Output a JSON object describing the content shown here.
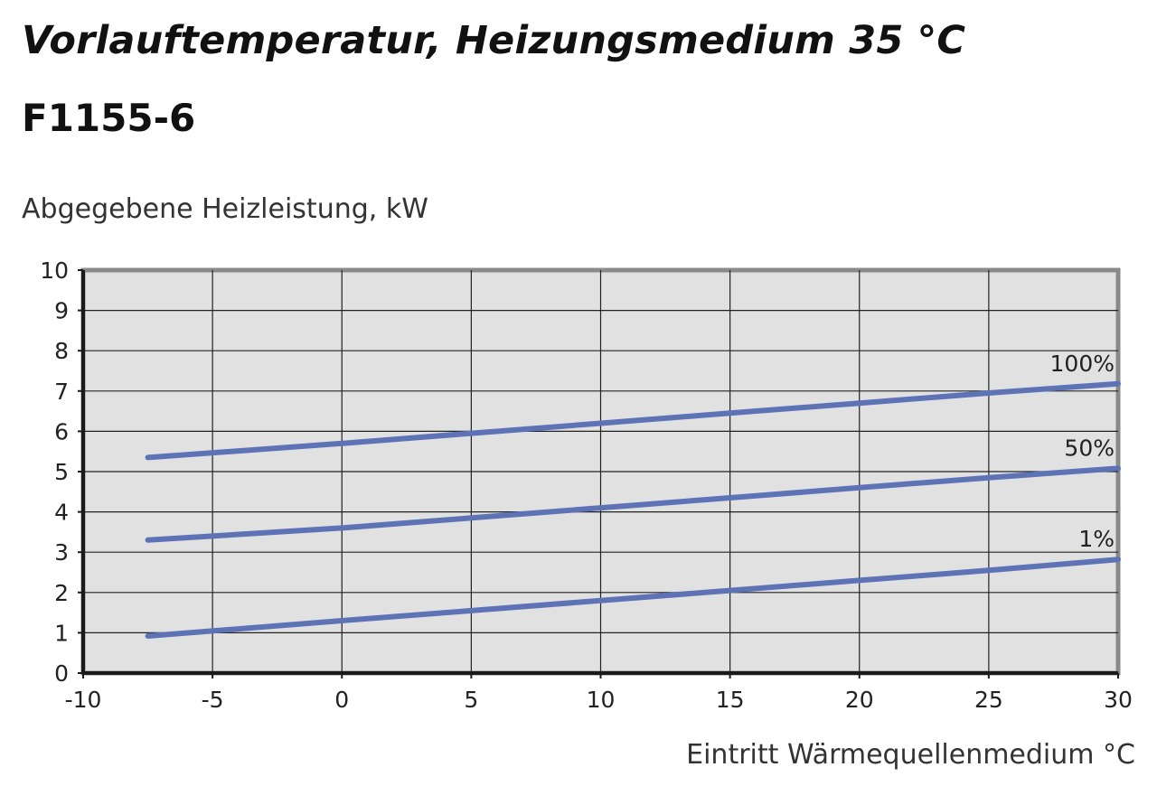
{
  "title": "Vorlauftemperatur, Heizungsmedium 35 °C",
  "subtitle": "F1155-6",
  "colors": {
    "plot_background": "#e1e1e1",
    "grid": "#222222",
    "frame": "#8a8a8a",
    "axis": "#1a1a1a",
    "series": "#5d73b6"
  },
  "chart_data": {
    "type": "line",
    "title": "Vorlauftemperatur, Heizungsmedium 35 °C",
    "subtitle": "F1155-6",
    "xlabel": "Eintritt Wärmequellenmedium °C",
    "ylabel": "Abgegebene Heizleistung, kW",
    "xlim": [
      -10,
      30
    ],
    "ylim": [
      0,
      10
    ],
    "xticks": [
      -10,
      -5,
      0,
      5,
      10,
      15,
      20,
      25,
      30
    ],
    "yticks": [
      0,
      1,
      2,
      3,
      4,
      5,
      6,
      7,
      8,
      9,
      10
    ],
    "grid": true,
    "legend": "inline-right",
    "series": [
      {
        "name": "100%",
        "x": [
          -7.5,
          0,
          5,
          10,
          15,
          20,
          25,
          30
        ],
        "y": [
          5.35,
          5.7,
          5.95,
          6.2,
          6.45,
          6.7,
          6.95,
          7.18
        ]
      },
      {
        "name": "50%",
        "x": [
          -7.5,
          0,
          5,
          10,
          15,
          20,
          25,
          30
        ],
        "y": [
          3.3,
          3.6,
          3.85,
          4.1,
          4.35,
          4.6,
          4.85,
          5.08
        ]
      },
      {
        "name": "1%",
        "x": [
          -7.5,
          0,
          5,
          10,
          15,
          20,
          25,
          30
        ],
        "y": [
          0.92,
          1.3,
          1.55,
          1.8,
          2.05,
          2.3,
          2.55,
          2.82
        ]
      }
    ]
  }
}
